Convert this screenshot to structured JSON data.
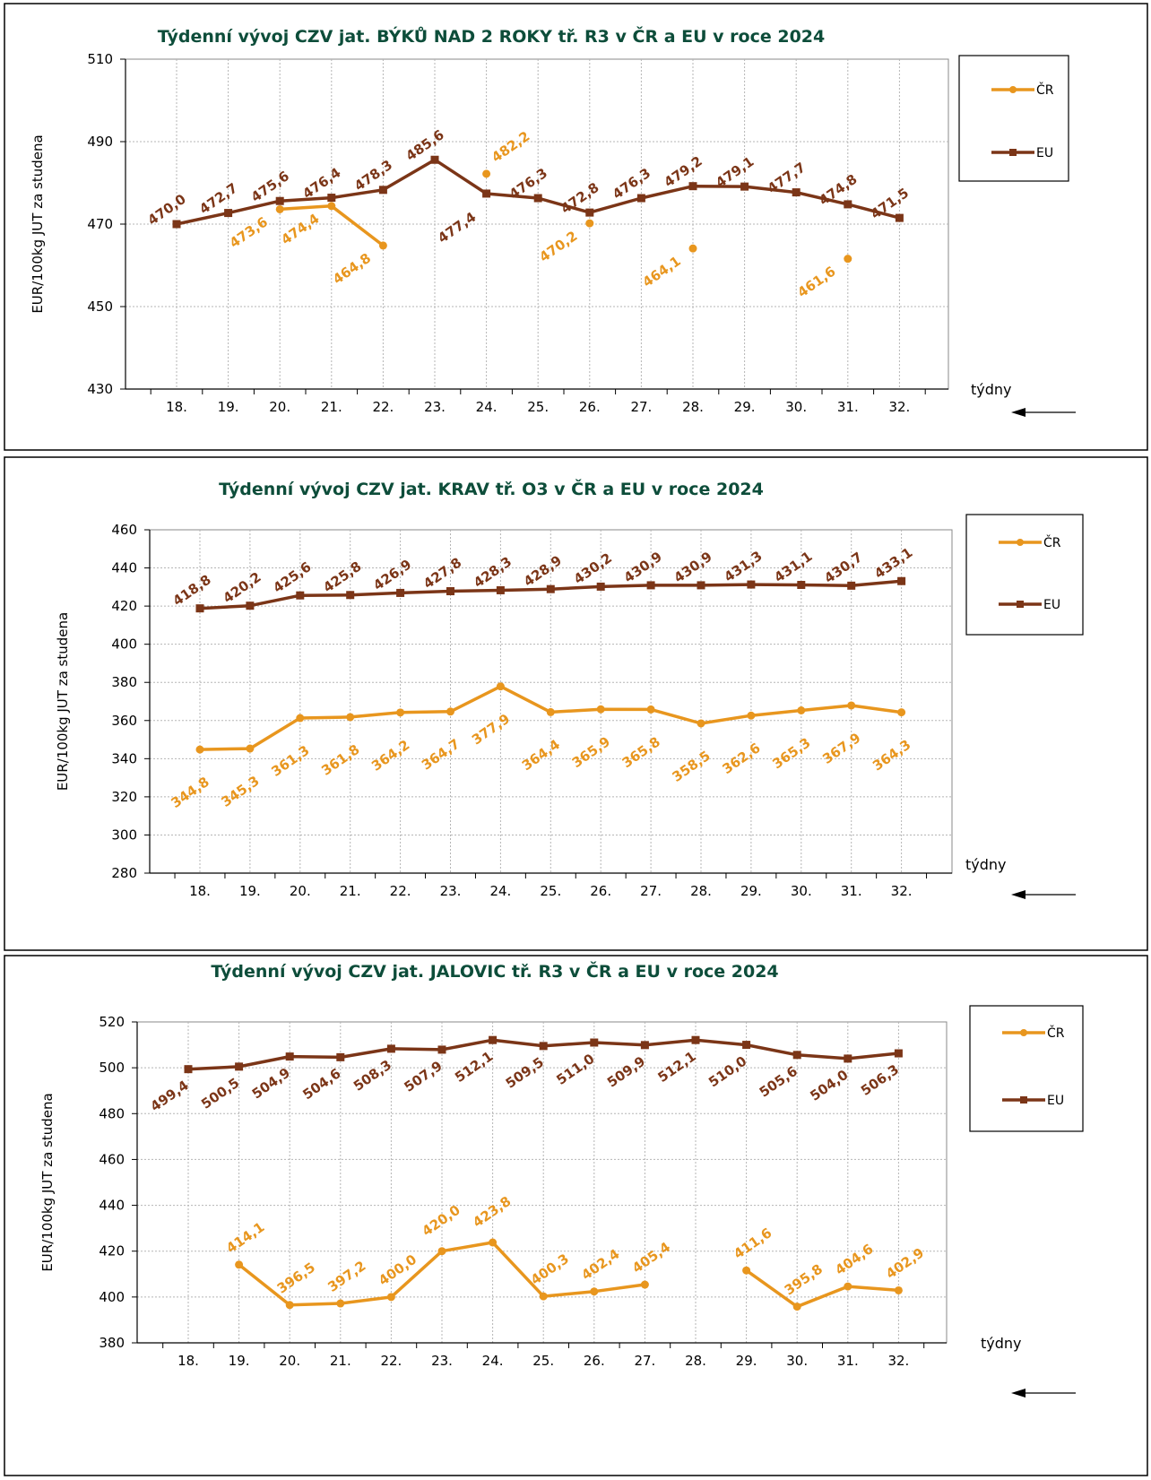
{
  "colors": {
    "cr": "#e8961e",
    "eu": "#7b3517",
    "title": "#0d4d3a",
    "grid": "#b5b5b5"
  },
  "chart_data": [
    {
      "type": "line",
      "title": "Týdenní vývoj CZV jat. BÝKŮ NAD 2 ROKY tř. R3  v ČR a EU v roce 2024",
      "ylabel": "EUR/100kg  JUT za studena",
      "xlabel": "týdny",
      "categories": [
        "18.",
        "19.",
        "20.",
        "21.",
        "22.",
        "23.",
        "24.",
        "25.",
        "26.",
        "27.",
        "28.",
        "29.",
        "30.",
        "31.",
        "32."
      ],
      "ylim": [
        430,
        510
      ],
      "yticks": [
        "430",
        "450",
        "470",
        "490",
        "510"
      ],
      "legend_position": "right",
      "grid": true,
      "series": [
        {
          "name": "ČR",
          "key": "cr",
          "values": [
            null,
            null,
            473.6,
            474.4,
            464.8,
            null,
            482.2,
            null,
            470.2,
            null,
            464.1,
            null,
            null,
            461.6,
            null
          ],
          "labels": [
            "",
            "",
            "473,6",
            "474,4",
            "464,8",
            "",
            "482,2",
            "",
            "470,2",
            "",
            "464,1",
            "",
            "",
            "461,6",
            ""
          ]
        },
        {
          "name": "EU",
          "key": "eu",
          "values": [
            470.0,
            472.7,
            475.6,
            476.4,
            478.3,
            485.6,
            477.4,
            476.3,
            472.8,
            476.3,
            479.2,
            479.1,
            477.7,
            474.8,
            471.5
          ],
          "labels": [
            "470,0",
            "472,7",
            "475,6",
            "476,4",
            "478,3",
            "485,6",
            "477,4",
            "476,3",
            "472,8",
            "476,3",
            "479,2",
            "479,1",
            "477,7",
            "474,8",
            "471,5"
          ]
        }
      ]
    },
    {
      "type": "line",
      "title": "Týdenní vývoj CZV jat. KRAV tř. O3  v ČR a EU v roce 2024",
      "ylabel": "EUR/100kg  JUT za studena",
      "xlabel": "týdny",
      "categories": [
        "18.",
        "19.",
        "20.",
        "21.",
        "22.",
        "23.",
        "24.",
        "25.",
        "26.",
        "27.",
        "28.",
        "29.",
        "30.",
        "31.",
        "32."
      ],
      "ylim": [
        280,
        460
      ],
      "yticks": [
        "280",
        "300",
        "320",
        "340",
        "360",
        "380",
        "400",
        "420",
        "440",
        "460"
      ],
      "legend_position": "right",
      "grid": true,
      "series": [
        {
          "name": "ČR",
          "key": "cr",
          "values": [
            344.8,
            345.3,
            361.3,
            361.8,
            364.2,
            364.7,
            377.9,
            364.4,
            365.9,
            365.8,
            358.5,
            362.6,
            365.3,
            367.9,
            364.3
          ],
          "labels": [
            "344,8",
            "345,3",
            "361,3",
            "361,8",
            "364,2",
            "364,7",
            "377,9",
            "364,4",
            "365,9",
            "365,8",
            "358,5",
            "362,6",
            "365,3",
            "367,9",
            "364,3"
          ]
        },
        {
          "name": "EU",
          "key": "eu",
          "values": [
            418.8,
            420.2,
            425.6,
            425.8,
            426.9,
            427.8,
            428.3,
            428.9,
            430.2,
            430.9,
            430.9,
            431.3,
            431.1,
            430.7,
            433.1
          ],
          "labels": [
            "418,8",
            "420,2",
            "425,6",
            "425,8",
            "426,9",
            "427,8",
            "428,3",
            "428,9",
            "430,2",
            "430,9",
            "430,9",
            "431,3",
            "431,1",
            "430,7",
            "433,1"
          ]
        }
      ]
    },
    {
      "type": "line",
      "title": "Týdenní vývoj CZV jat. JALOVIC tř. R3  v ČR a EU v roce 2024",
      "ylabel": "EUR/100kg  JUT za studena",
      "xlabel": "týdny",
      "categories": [
        "18.",
        "19.",
        "20.",
        "21.",
        "22.",
        "23.",
        "24.",
        "25.",
        "26.",
        "27.",
        "28.",
        "29.",
        "30.",
        "31.",
        "32."
      ],
      "ylim": [
        380,
        520
      ],
      "yticks": [
        "380",
        "400",
        "420",
        "440",
        "460",
        "480",
        "500",
        "520"
      ],
      "legend_position": "right",
      "grid": true,
      "series": [
        {
          "name": "ČR",
          "key": "cr",
          "values": [
            null,
            414.1,
            396.5,
            397.2,
            400.0,
            420.0,
            423.8,
            400.3,
            402.4,
            405.4,
            null,
            411.6,
            395.8,
            404.6,
            402.9
          ],
          "labels": [
            "",
            "414,1",
            "396,5",
            "397,2",
            "400,0",
            "420,0",
            "423,8",
            "400,3",
            "402,4",
            "405,4",
            "",
            "411,6",
            "395,8",
            "404,6",
            "402,9"
          ]
        },
        {
          "name": "EU",
          "key": "eu",
          "values": [
            499.4,
            500.5,
            504.9,
            504.6,
            508.3,
            507.9,
            512.1,
            509.5,
            511.0,
            509.9,
            512.1,
            510.0,
            505.6,
            504.0,
            506.3
          ],
          "labels": [
            "499,4",
            "500,5",
            "504,9",
            "504,6",
            "508,3",
            "507,9",
            "512,1",
            "509,5",
            "511,0",
            "509,9",
            "512,1",
            "510,0",
            "505,6",
            "504,0",
            "506,3"
          ]
        }
      ]
    }
  ]
}
